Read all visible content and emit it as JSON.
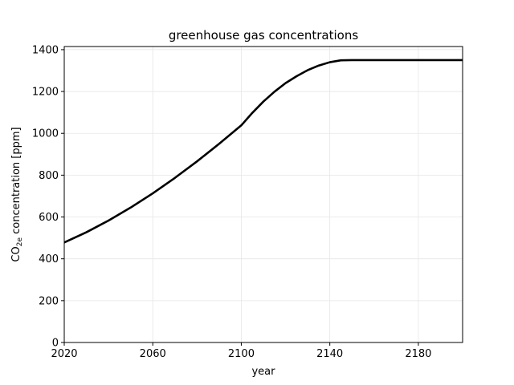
{
  "chart_data": {
    "type": "line",
    "title": "greenhouse gas concentrations",
    "xlabel": "year",
    "ylabel_main": "CO",
    "ylabel_sub": "2e",
    "ylabel_rest": " concentration [ppm]",
    "xlim": [
      2020,
      2200
    ],
    "ylim": [
      0,
      1415
    ],
    "xticks": [
      2020,
      2060,
      2100,
      2140,
      2180
    ],
    "yticks": [
      0,
      200,
      400,
      600,
      800,
      1000,
      1200,
      1400
    ],
    "grid": true,
    "line_color": "#000000",
    "series": [
      {
        "x": [
          2020,
          2030,
          2040,
          2050,
          2060,
          2070,
          2080,
          2090,
          2100,
          2105,
          2110,
          2115,
          2120,
          2125,
          2130,
          2135,
          2140,
          2145,
          2150,
          2160,
          2170,
          2180,
          2190,
          2200
        ],
        "y": [
          478,
          527,
          583,
          645,
          713,
          787,
          866,
          950,
          1038,
          1098,
          1152,
          1199,
          1240,
          1273,
          1302,
          1324,
          1340,
          1349,
          1350,
          1350,
          1350,
          1350,
          1350,
          1350
        ]
      }
    ]
  }
}
